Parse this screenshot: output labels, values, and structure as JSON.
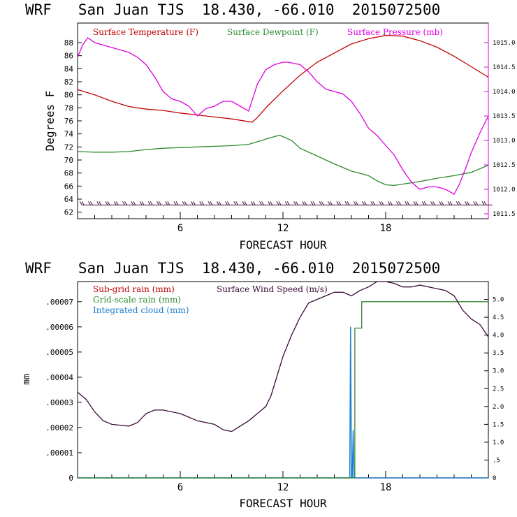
{
  "colors": {
    "temperature": "#c00000",
    "dewpoint": "#2e8b2e",
    "pressure": "#e000e0",
    "wind": "#3a0a3a",
    "grid_rain": "#2e8b2e",
    "subgrid_rain": "#c00000",
    "cloud": "#1e7fd0"
  },
  "chart_data": [
    {
      "type": "line",
      "title": "WRF   San Juan TJS  18.430, -66.010  2015072500",
      "xlabel": "FORECAST HOUR",
      "ylabel": "Degrees F",
      "xlim": [
        0,
        24
      ],
      "ylim": [
        61,
        91
      ],
      "y2lim": [
        1011.4,
        1015.4
      ],
      "xticks": [
        "6",
        "12",
        "18"
      ],
      "yticks": [
        "62",
        "64",
        "66",
        "68",
        "70",
        "72",
        "74",
        "76",
        "78",
        "80",
        "82",
        "84",
        "86",
        "88"
      ],
      "y2ticks": [
        "1011.5",
        "1012.0",
        "1012.5",
        "1013.0",
        "1013.5",
        "1014.0",
        "1014.5",
        "1015.0"
      ],
      "series": [
        {
          "name": "Surface Temperature (F)",
          "axis": "left",
          "x": [
            0,
            1,
            2,
            3,
            4,
            5,
            6,
            7,
            8,
            9,
            10.2,
            10.5,
            11,
            12,
            13,
            14,
            15,
            16,
            17,
            18,
            19,
            20,
            21,
            22,
            23,
            24
          ],
          "y": [
            80.8,
            80,
            79,
            78.2,
            77.8,
            77.6,
            77.2,
            76.9,
            76.6,
            76.3,
            75.8,
            76.5,
            78,
            80.6,
            83,
            85,
            86.4,
            87.8,
            88.6,
            89.1,
            89,
            88.3,
            87.3,
            85.9,
            84.3,
            82.7
          ]
        },
        {
          "name": "Surface Dewpoint (F)",
          "axis": "left",
          "x": [
            0,
            1,
            2,
            3,
            4,
            5,
            6,
            7,
            8,
            9,
            10,
            11,
            11.8,
            12.5,
            13,
            14,
            15,
            16,
            17,
            17.5,
            18,
            18.5,
            19,
            20,
            21,
            22,
            23,
            24
          ],
          "y": [
            71.3,
            71.2,
            71.2,
            71.3,
            71.6,
            71.8,
            71.9,
            72,
            72.1,
            72.2,
            72.4,
            73.2,
            73.8,
            73,
            71.8,
            70.6,
            69.4,
            68.3,
            67.6,
            66.8,
            66.2,
            66.1,
            66.3,
            66.7,
            67.2,
            67.6,
            68.1,
            69.2
          ]
        },
        {
          "name": "Surface Pressure (mb)",
          "axis": "right",
          "x": [
            0,
            0.3,
            0.6,
            1,
            2,
            2.5,
            3,
            3.5,
            4,
            4.5,
            5,
            5.5,
            6,
            6.5,
            7,
            7.5,
            8,
            8.5,
            9,
            9.5,
            10,
            10.5,
            11,
            11.5,
            12,
            12.3,
            13,
            13.5,
            14,
            14.5,
            15,
            15.5,
            16,
            16.5,
            17,
            17.5,
            18,
            18.5,
            19,
            19.5,
            20,
            20.5,
            21,
            21.5,
            22,
            22.3,
            22.7,
            23,
            23.5,
            24
          ],
          "y": [
            1014.7,
            1014.95,
            1015.1,
            1015.0,
            1014.9,
            1014.85,
            1014.8,
            1014.7,
            1014.55,
            1014.3,
            1014.0,
            1013.85,
            1013.8,
            1013.7,
            1013.5,
            1013.65,
            1013.7,
            1013.8,
            1013.8,
            1013.7,
            1013.6,
            1014.15,
            1014.45,
            1014.55,
            1014.6,
            1014.6,
            1014.55,
            1014.4,
            1014.2,
            1014.05,
            1014.0,
            1013.95,
            1013.8,
            1013.55,
            1013.25,
            1013.1,
            1012.9,
            1012.7,
            1012.4,
            1012.15,
            1012.0,
            1012.05,
            1012.05,
            1012.0,
            1011.9,
            1012.1,
            1012.45,
            1012.75,
            1013.15,
            1013.5
          ]
        }
      ],
      "wind_barbs": "row of wind barbs along the bottom of the plot"
    },
    {
      "type": "line",
      "title": "WRF   San Juan TJS  18.430, -66.010  2015072500",
      "xlabel": "FORECAST HOUR",
      "ylabel": "mm",
      "xlim": [
        0,
        24
      ],
      "ylim": [
        0,
        7.8e-05
      ],
      "y2lim": [
        0,
        5.5
      ],
      "xticks": [
        "6",
        "12",
        "18"
      ],
      "yticks": [
        "0",
        ".00001",
        ".00002",
        ".00003",
        ".00004",
        ".00005",
        ".00006",
        ".00007"
      ],
      "y2ticks": [
        "0",
        ".5",
        "1.0",
        "1.5",
        "2.0",
        "2.5",
        "3.0",
        "3.5",
        "4.0",
        "4.5",
        "5.0"
      ],
      "series": [
        {
          "name": "Sub-grid rain (mm)",
          "axis": "left",
          "x": [
            0,
            24
          ],
          "y": [
            0,
            0
          ]
        },
        {
          "name": "Grid-scale rain (mm)",
          "axis": "left",
          "step": true,
          "x": [
            0,
            16.2,
            16.2,
            16.6,
            16.6,
            24
          ],
          "y": [
            0,
            0,
            5.95e-05,
            5.95e-05,
            7e-05,
            7e-05
          ]
        },
        {
          "name": "Integrated cloud (mm)",
          "axis": "left",
          "x": [
            0,
            15.9,
            15.95,
            16.0,
            16.05,
            16.1,
            16.15,
            24
          ],
          "y": [
            0,
            0,
            6e-05,
            0,
            0,
            1.9e-05,
            0,
            0
          ]
        },
        {
          "name": "Surface Wind Speed (m/s)",
          "axis": "right",
          "x": [
            0,
            0.5,
            1,
            1.5,
            2,
            3,
            3.5,
            4,
            4.5,
            5,
            6,
            6.5,
            7,
            8,
            8.5,
            9,
            9.5,
            10,
            10.5,
            11,
            11.3,
            12,
            12.5,
            13,
            13.5,
            14,
            14.5,
            15,
            15.5,
            16,
            16.5,
            17,
            17.5,
            18,
            18.5,
            19,
            19.5,
            20,
            21,
            21.5,
            22,
            22.5,
            23,
            23.5,
            24
          ],
          "y": [
            2.4,
            2.2,
            1.85,
            1.6,
            1.5,
            1.45,
            1.55,
            1.8,
            1.9,
            1.9,
            1.8,
            1.7,
            1.6,
            1.5,
            1.35,
            1.3,
            1.45,
            1.6,
            1.8,
            2.0,
            2.3,
            3.4,
            4.0,
            4.5,
            4.9,
            5.0,
            5.1,
            5.2,
            5.2,
            5.1,
            5.25,
            5.35,
            5.5,
            5.5,
            5.45,
            5.35,
            5.35,
            5.4,
            5.3,
            5.25,
            5.1,
            4.7,
            4.45,
            4.3,
            3.95
          ]
        }
      ]
    }
  ]
}
